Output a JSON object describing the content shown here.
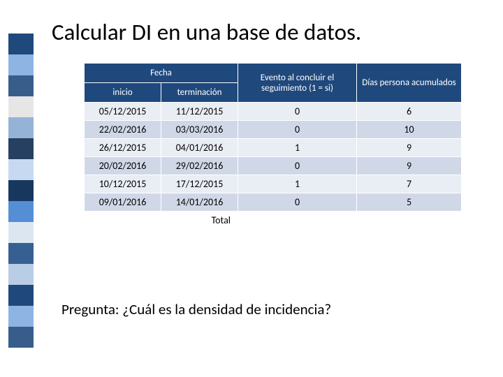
{
  "title": "Calcular DI en una base de datos.",
  "stripe": {
    "colors": [
      "#1f497d",
      "#8eb4e3",
      "#385d8a",
      "#e6e6e6",
      "#95b3d7",
      "#254061",
      "#c6d9f1",
      "#17375e",
      "#558ed5",
      "#dce6f1",
      "#376092",
      "#b9cde5",
      "#1f497d",
      "#8eb4e3",
      "#385d8a"
    ],
    "seg_height": 30
  },
  "table": {
    "headers": {
      "fecha": "Fecha",
      "inicio": "inicio",
      "terminacion": "terminación",
      "evento": "Evento al concluir el seguimiento (1 = si)",
      "dias": "Días persona acumulados"
    },
    "rows": [
      {
        "inicio": "05/12/2015",
        "fin": "11/12/2015",
        "evento": "0",
        "dias": "6"
      },
      {
        "inicio": "22/02/2016",
        "fin": "03/03/2016",
        "evento": "0",
        "dias": "10"
      },
      {
        "inicio": "26/12/2015",
        "fin": "04/01/2016",
        "evento": "1",
        "dias": "9"
      },
      {
        "inicio": "20/02/2016",
        "fin": "29/02/2016",
        "evento": "0",
        "dias": "9"
      },
      {
        "inicio": "10/12/2015",
        "fin": "17/12/2015",
        "evento": "1",
        "dias": "7"
      },
      {
        "inicio": "09/01/2016",
        "fin": "14/01/2016",
        "evento": "0",
        "dias": "5"
      }
    ],
    "total_label": "Total",
    "header_bg": "#1f497d",
    "header_fg": "#ffffff",
    "row_alt1_bg": "#e9edf4",
    "row_alt2_bg": "#d0d8e8"
  },
  "question": "Pregunta: ¿Cuál es la densidad de incidencia?"
}
